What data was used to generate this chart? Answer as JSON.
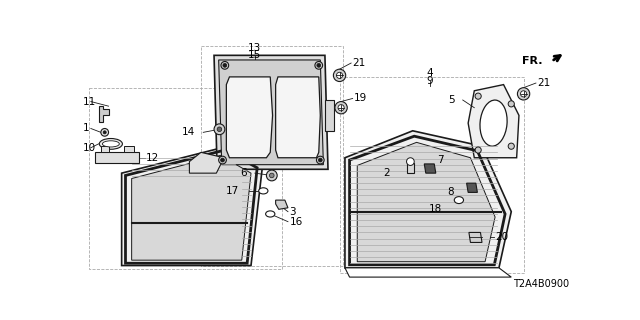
{
  "background_color": "#ffffff",
  "part_number": "T2A4B0900",
  "line_color": "#1a1a1a",
  "fill_light": "#e8e8e8",
  "fill_medium": "#cccccc",
  "fill_dark": "#aaaaaa",
  "hatch_color": "#999999",
  "dashed_color": "#aaaaaa"
}
